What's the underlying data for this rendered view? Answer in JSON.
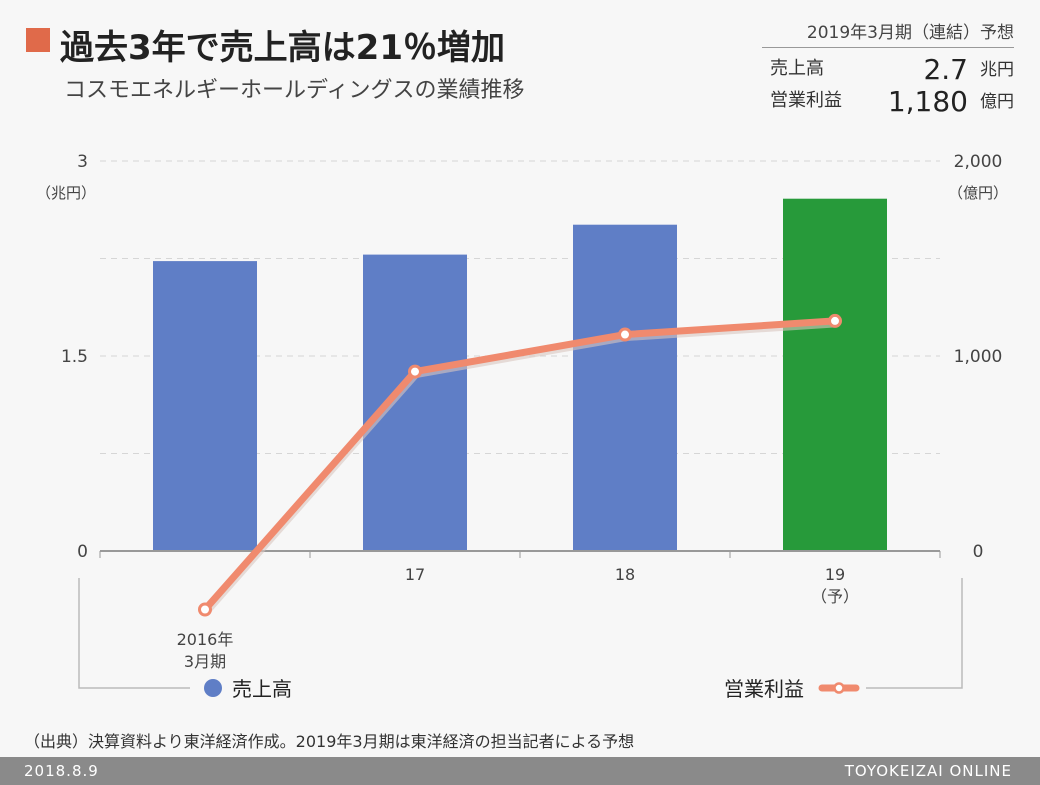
{
  "header": {
    "title": "過去3年で売上高は21％増加",
    "subtitle": "コスモエネルギーホールディングスの業績推移"
  },
  "forecast": {
    "heading": "2019年3月期（連結）予想",
    "rows": [
      {
        "label": "売上高",
        "value": "2.7",
        "unit": "兆円"
      },
      {
        "label": "営業利益",
        "value": "1,180",
        "unit": "億円"
      }
    ]
  },
  "chart_data": {
    "type": "bar",
    "categories": [
      "2016年\n3月期",
      "17",
      "18",
      "19\n（予）"
    ],
    "series": [
      {
        "name": "売上高",
        "type": "bar",
        "axis": "left",
        "values": [
          2.23,
          2.28,
          2.51,
          2.71
        ],
        "colors": [
          "#5f7ec6",
          "#5f7ec6",
          "#5f7ec6",
          "#279a3a"
        ]
      },
      {
        "name": "営業利益",
        "type": "line",
        "axis": "right",
        "values": [
          -300,
          920,
          1110,
          1180
        ],
        "color": "#f08a6e"
      }
    ],
    "left_axis": {
      "ticks": [
        "3",
        "1.5",
        "0"
      ],
      "tick_values": [
        3,
        1.5,
        0
      ],
      "unit": "（兆円）",
      "ylim": [
        0,
        3
      ]
    },
    "right_axis": {
      "ticks": [
        "2,000",
        "1,000",
        "0"
      ],
      "tick_values": [
        2000,
        1000,
        0
      ],
      "unit": "（億円）",
      "ylim": [
        0,
        2000
      ]
    },
    "grid": true,
    "legend": {
      "position": "bottom"
    }
  },
  "source": "（出典）決算資料より東洋経済作成。2019年3月期は東洋経済の担当記者による予想",
  "footer": {
    "date": "2018.8.9",
    "brand": "TOYOKEIZAI ONLINE"
  }
}
